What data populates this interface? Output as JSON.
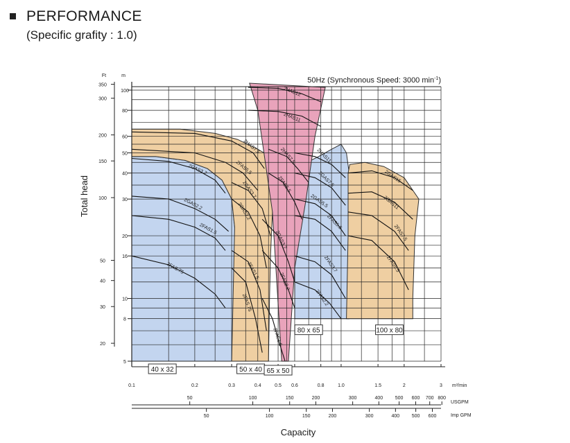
{
  "page": {
    "title": "PERFORMANCE",
    "subtitle": "(Specific grafity : 1.0)"
  },
  "chart_data": {
    "type": "area",
    "title": "50Hz (Synchronous Speed: 3000 min-1)",
    "ylabel": "Total head",
    "xlabel": "Capacity",
    "x_scale": "log",
    "y_scale": "log",
    "xlim": [
      0.1,
      3
    ],
    "ylim_m": [
      5,
      100
    ],
    "x_unit": "m³/min",
    "y_unit_primary": "m",
    "y_unit_secondary": "Ft",
    "x_ticks": [
      {
        "value": 0.1,
        "label": "0.1"
      },
      {
        "value": 0.2,
        "label": "0.2"
      },
      {
        "value": 0.3,
        "label": "0.3"
      },
      {
        "value": 0.4,
        "label": "0.4"
      },
      {
        "value": 0.5,
        "label": "0.5"
      },
      {
        "value": 0.6,
        "label": "0.6"
      },
      {
        "value": 0.8,
        "label": "0.8"
      },
      {
        "value": 1.0,
        "label": "1.0"
      },
      {
        "value": 1.5,
        "label": "1.5"
      },
      {
        "value": 2,
        "label": "2"
      },
      {
        "value": 3,
        "label": "3"
      }
    ],
    "y_ticks_m": [
      {
        "value": 5,
        "label": "5"
      },
      {
        "value": 8,
        "label": "8"
      },
      {
        "value": 10,
        "label": "10"
      },
      {
        "value": 16,
        "label": "16"
      },
      {
        "value": 20,
        "label": "20"
      },
      {
        "value": 30,
        "label": "30"
      },
      {
        "value": 40,
        "label": "40"
      },
      {
        "value": 50,
        "label": "50"
      },
      {
        "value": 60,
        "label": "60"
      },
      {
        "value": 80,
        "label": "80"
      },
      {
        "value": 100,
        "label": "100"
      }
    ],
    "y_ticks_ft": [
      {
        "value": 20,
        "label": "20"
      },
      {
        "value": 30,
        "label": "30"
      },
      {
        "value": 40,
        "label": "40"
      },
      {
        "value": 50,
        "label": "50"
      },
      {
        "value": 100,
        "label": "100"
      },
      {
        "value": 150,
        "label": "150"
      },
      {
        "value": 200,
        "label": "200"
      },
      {
        "value": 300,
        "label": "300"
      },
      {
        "value": 350,
        "label": "350"
      }
    ],
    "usgpm_axis": {
      "label": "USGPM",
      "ticks": [
        {
          "value": 50,
          "label": "50"
        },
        {
          "value": 100,
          "label": "100"
        },
        {
          "value": 150,
          "label": "150"
        },
        {
          "value": 200,
          "label": "200"
        },
        {
          "value": 300,
          "label": "300"
        },
        {
          "value": 400,
          "label": "400"
        },
        {
          "value": 500,
          "label": "500"
        },
        {
          "value": 600,
          "label": "600"
        },
        {
          "value": 700,
          "label": "700"
        },
        {
          "value": 800,
          "label": "800"
        }
      ]
    },
    "impgpm_axis": {
      "label": "Imp GPM",
      "ticks": [
        {
          "value": 50,
          "label": "50"
        },
        {
          "value": 100,
          "label": "100"
        },
        {
          "value": 150,
          "label": "150"
        },
        {
          "value": 200,
          "label": "200"
        },
        {
          "value": 300,
          "label": "300"
        },
        {
          "value": 400,
          "label": "400"
        },
        {
          "value": 500,
          "label": "500"
        },
        {
          "value": 600,
          "label": "600"
        }
      ]
    },
    "regions": [
      {
        "label": "40 x 32",
        "color": "#c3d5ef",
        "zorder": 1,
        "polygon": [
          [
            0.1,
            5
          ],
          [
            0.1,
            48
          ],
          [
            0.13,
            48
          ],
          [
            0.18,
            46
          ],
          [
            0.23,
            42
          ],
          [
            0.27,
            37
          ],
          [
            0.3,
            30
          ],
          [
            0.31,
            22
          ],
          [
            0.32,
            14
          ],
          [
            0.33,
            5
          ]
        ]
      },
      {
        "label": "50 x 40",
        "color": "#efcfa2",
        "zorder": 2,
        "polygon": [
          [
            0.3,
            5
          ],
          [
            0.31,
            22
          ],
          [
            0.3,
            30
          ],
          [
            0.27,
            37
          ],
          [
            0.23,
            42
          ],
          [
            0.18,
            46
          ],
          [
            0.13,
            48
          ],
          [
            0.1,
            48
          ],
          [
            0.1,
            65
          ],
          [
            0.17,
            65
          ],
          [
            0.25,
            62
          ],
          [
            0.32,
            58
          ],
          [
            0.4,
            52
          ],
          [
            0.46,
            48
          ],
          [
            0.48,
            40
          ],
          [
            0.47,
            26
          ],
          [
            0.46,
            16
          ],
          [
            0.455,
            10
          ],
          [
            0.45,
            5
          ]
        ]
      },
      {
        "label": "80 x 65",
        "color": "#c3d5ef",
        "zorder": 3,
        "polygon": [
          [
            0.6,
            8
          ],
          [
            0.6,
            42
          ],
          [
            0.78,
            48
          ],
          [
            0.9,
            52
          ],
          [
            1.0,
            55
          ],
          [
            1.06,
            50
          ],
          [
            1.1,
            38
          ],
          [
            1.1,
            20
          ],
          [
            1.09,
            8
          ]
        ]
      },
      {
        "label": "100 x 80",
        "color": "#efcfa2",
        "zorder": 4,
        "polygon": [
          [
            1.06,
            8
          ],
          [
            1.08,
            20
          ],
          [
            1.08,
            40
          ],
          [
            1.1,
            44
          ],
          [
            1.3,
            45
          ],
          [
            1.6,
            43
          ],
          [
            2.0,
            38
          ],
          [
            2.35,
            30
          ],
          [
            2.25,
            20
          ],
          [
            2.2,
            10
          ],
          [
            2.2,
            8
          ]
        ]
      },
      {
        "label": "65 x 50",
        "color": "#e9a3bb",
        "zorder": 5,
        "polygon": [
          [
            0.52,
            5
          ],
          [
            0.47,
            26
          ],
          [
            0.4,
            80
          ],
          [
            0.365,
            108
          ],
          [
            0.84,
            103
          ],
          [
            0.75,
            60
          ],
          [
            0.68,
            30
          ],
          [
            0.6,
            14
          ],
          [
            0.56,
            5
          ]
        ]
      }
    ],
    "curves": [
      {
        "name": "2GAS3.7",
        "points": [
          [
            0.1,
            47
          ],
          [
            0.15,
            45.5
          ],
          [
            0.2,
            42
          ],
          [
            0.25,
            37
          ],
          [
            0.28,
            32
          ]
        ],
        "label_at": [
          0.205,
          41
        ],
        "angle": 25
      },
      {
        "name": "2GAS2.2",
        "points": [
          [
            0.1,
            31
          ],
          [
            0.15,
            30
          ],
          [
            0.2,
            27
          ],
          [
            0.25,
            24
          ],
          [
            0.29,
            21
          ]
        ],
        "label_at": [
          0.195,
          28
        ],
        "angle": 28
      },
      {
        "name": "2FAS1.5",
        "points": [
          [
            0.1,
            25
          ],
          [
            0.15,
            24
          ],
          [
            0.2,
            22
          ],
          [
            0.25,
            19.5
          ],
          [
            0.28,
            17
          ]
        ],
        "label_at": [
          0.23,
          21.3
        ],
        "angle": 28
      },
      {
        "name": "2FAS.75",
        "points": [
          [
            0.1,
            16
          ],
          [
            0.15,
            14.5
          ],
          [
            0.2,
            12.5
          ],
          [
            0.25,
            10.5
          ],
          [
            0.28,
            9
          ]
        ],
        "label_at": [
          0.16,
          13.8
        ],
        "angle": 30
      },
      {
        "name": "2HAS7.5",
        "points": [
          [
            0.1,
            63
          ],
          [
            0.2,
            62
          ],
          [
            0.3,
            57
          ],
          [
            0.38,
            50
          ],
          [
            0.43,
            42
          ]
        ],
        "label_at": [
          0.37,
          53
        ],
        "angle": 40
      },
      {
        "name": "2FAS5.5",
        "points": [
          [
            0.1,
            52
          ],
          [
            0.2,
            50
          ],
          [
            0.28,
            45
          ],
          [
            0.34,
            40
          ],
          [
            0.4,
            33
          ]
        ],
        "label_at": [
          0.34,
          42
        ],
        "angle": 40
      },
      {
        "name": "2GAS3.7",
        "points": [
          [
            0.3,
            36
          ],
          [
            0.36,
            33
          ],
          [
            0.42,
            27
          ],
          [
            0.46,
            20
          ]
        ],
        "label_at": [
          0.36,
          33
        ],
        "angle": 55
      },
      {
        "name": "2GAS2.2",
        "points": [
          [
            0.3,
            30
          ],
          [
            0.36,
            26
          ],
          [
            0.41,
            20
          ],
          [
            0.44,
            14
          ]
        ],
        "label_at": [
          0.34,
          26
        ],
        "angle": 58
      },
      {
        "name": "2FAS1.5",
        "points": [
          [
            0.3,
            17
          ],
          [
            0.36,
            15
          ],
          [
            0.41,
            11
          ],
          [
            0.44,
            7
          ]
        ],
        "label_at": [
          0.375,
          13.5
        ],
        "angle": 62
      },
      {
        "name": "2FAS.75",
        "points": [
          [
            0.3,
            14
          ],
          [
            0.35,
            12
          ],
          [
            0.39,
            8
          ],
          [
            0.42,
            5.5
          ]
        ],
        "label_at": [
          0.35,
          9.5
        ],
        "angle": 70
      },
      {
        "name": "2HAS12",
        "points": [
          [
            0.36,
            103
          ],
          [
            0.5,
            102
          ],
          [
            0.65,
            96
          ],
          [
            0.8,
            88
          ]
        ],
        "label_at": [
          0.58,
          97
        ],
        "angle": 22
      },
      {
        "name": "2HAS11",
        "points": [
          [
            0.36,
            80
          ],
          [
            0.5,
            79
          ],
          [
            0.65,
            75
          ],
          [
            0.8,
            67
          ]
        ],
        "label_at": [
          0.58,
          73
        ],
        "angle": 22
      },
      {
        "name": "2HAS7.5",
        "points": [
          [
            0.45,
            52
          ],
          [
            0.55,
            48
          ],
          [
            0.62,
            42
          ],
          [
            0.7,
            36
          ]
        ],
        "label_at": [
          0.55,
          48
        ],
        "angle": 50
      },
      {
        "name": "2FAS5.5",
        "points": [
          [
            0.45,
            40
          ],
          [
            0.53,
            36
          ],
          [
            0.6,
            29
          ],
          [
            0.65,
            24
          ]
        ],
        "label_at": [
          0.53,
          35
        ],
        "angle": 55
      },
      {
        "name": "2GAS3.7",
        "points": [
          [
            0.42,
            24
          ],
          [
            0.5,
            20
          ],
          [
            0.56,
            15
          ],
          [
            0.6,
            12
          ]
        ],
        "label_at": [
          0.51,
          19
        ],
        "angle": 65
      },
      {
        "name": "2FAS2.2",
        "points": [
          [
            0.42,
            17
          ],
          [
            0.5,
            14
          ],
          [
            0.56,
            11
          ],
          [
            0.6,
            9
          ]
        ],
        "label_at": [
          0.53,
          12
        ],
        "angle": 68
      },
      {
        "name": "2FAS1.5",
        "points": [
          [
            0.42,
            10
          ],
          [
            0.47,
            8
          ],
          [
            0.51,
            6
          ],
          [
            0.54,
            5
          ]
        ],
        "label_at": [
          0.49,
          6.5
        ],
        "angle": 72
      },
      {
        "name": "2HAS11",
        "points": [
          [
            0.6,
            50
          ],
          [
            0.75,
            48
          ],
          [
            0.9,
            44
          ],
          [
            1.05,
            38
          ]
        ],
        "label_at": [
          0.82,
          48
        ],
        "angle": 45
      },
      {
        "name": "2GAS7.5",
        "points": [
          [
            0.6,
            40
          ],
          [
            0.75,
            38
          ],
          [
            0.9,
            34
          ],
          [
            1.05,
            28
          ]
        ],
        "label_at": [
          0.84,
          37
        ],
        "angle": 45
      },
      {
        "name": "2GAS5.5",
        "points": [
          [
            0.6,
            30
          ],
          [
            0.75,
            28.5
          ],
          [
            0.9,
            25
          ],
          [
            1.05,
            20
          ]
        ],
        "label_at": [
          0.78,
          29
        ],
        "angle": 35
      },
      {
        "name": "2FAS5.5",
        "points": [
          [
            0.6,
            25
          ],
          [
            0.75,
            24
          ],
          [
            0.9,
            21
          ],
          [
            1.05,
            17
          ]
        ],
        "label_at": [
          0.92,
          23
        ],
        "angle": 45
      },
      {
        "name": "2FAS3.7",
        "points": [
          [
            0.6,
            16
          ],
          [
            0.75,
            15
          ],
          [
            0.9,
            13
          ],
          [
            1.05,
            10
          ]
        ],
        "label_at": [
          0.88,
          14.5
        ],
        "angle": 55
      },
      {
        "name": "2FAS2.2",
        "points": [
          [
            0.6,
            12
          ],
          [
            0.75,
            11
          ],
          [
            0.88,
            9.5
          ],
          [
            1.0,
            8
          ]
        ],
        "label_at": [
          0.8,
          10
        ],
        "angle": 55
      },
      {
        "name": "2GAS15",
        "points": [
          [
            1.08,
            40
          ],
          [
            1.4,
            41
          ],
          [
            1.8,
            38
          ],
          [
            2.2,
            33
          ]
        ],
        "label_at": [
          1.75,
          38
        ],
        "angle": 35
      },
      {
        "name": "2GAS11",
        "points": [
          [
            1.08,
            32
          ],
          [
            1.4,
            32.5
          ],
          [
            1.8,
            29
          ],
          [
            2.2,
            24
          ]
        ],
        "label_at": [
          1.72,
          28.5
        ],
        "angle": 40
      },
      {
        "name": "2FAS7.5",
        "points": [
          [
            1.08,
            26
          ],
          [
            1.4,
            25
          ],
          [
            1.8,
            21
          ],
          [
            2.1,
            17
          ]
        ],
        "label_at": [
          1.9,
          20.5
        ],
        "angle": 55
      },
      {
        "name": "2FAS5.5",
        "points": [
          [
            1.08,
            20
          ],
          [
            1.4,
            19
          ],
          [
            1.8,
            15
          ],
          [
            2.1,
            11
          ]
        ],
        "label_at": [
          1.75,
          14.5
        ],
        "angle": 55
      }
    ]
  }
}
